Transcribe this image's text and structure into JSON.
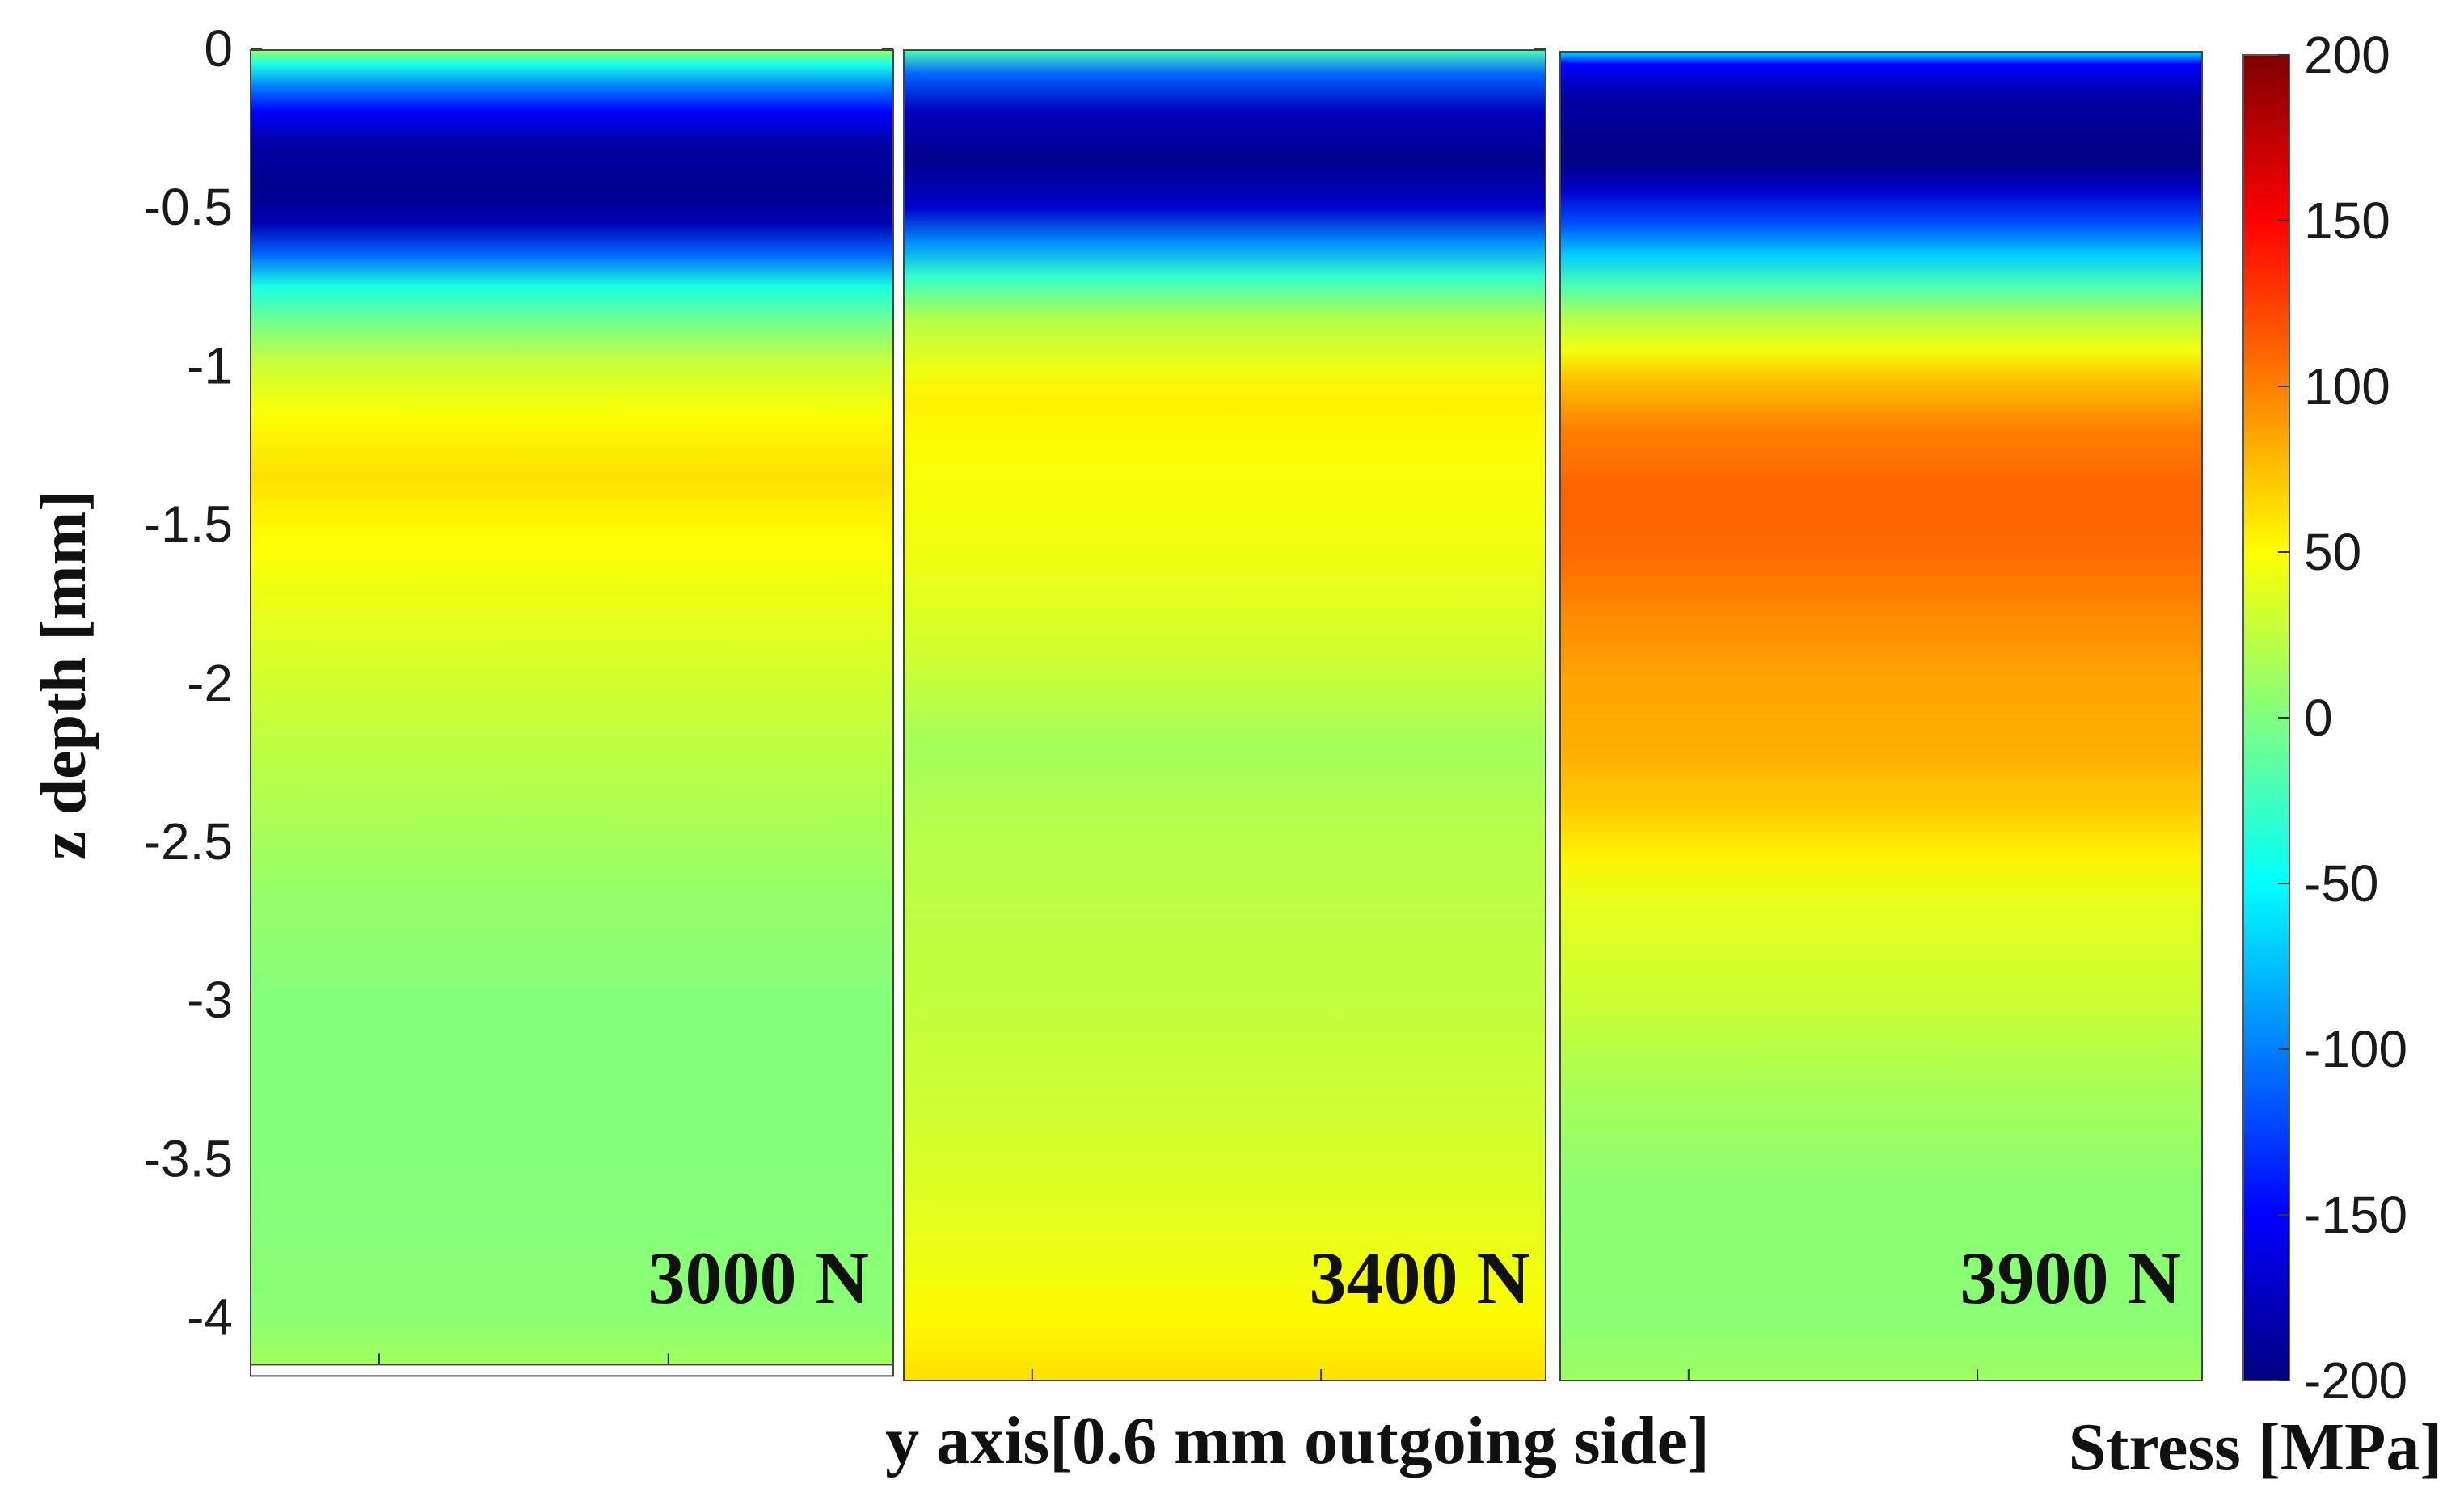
{
  "chart_data": {
    "type": "heatmap",
    "title": "",
    "xlabel": "y axis[0.6 mm outgoing side]",
    "ylabel": "z depth [mm]",
    "ylim": [
      -4.2,
      0
    ],
    "y_ticks": [
      "0",
      "-0.5",
      "-1",
      "-1.5",
      "-2",
      "-2.5",
      "-3",
      "-3.5",
      "-4"
    ],
    "y_tick_values": [
      0,
      -0.5,
      -1,
      -1.5,
      -2,
      -2.5,
      -3,
      -3.5,
      -4
    ],
    "colorbar": {
      "label": "Stress [MPa]",
      "range": [
        -200,
        200
      ],
      "ticks": [
        "200",
        "150",
        "100",
        "50",
        "0",
        "-50",
        "-100",
        "-150",
        "-200"
      ],
      "tick_values": [
        200,
        150,
        100,
        50,
        0,
        -50,
        -100,
        -150,
        -200
      ],
      "colormap": "jet"
    },
    "panels": [
      {
        "label": "3000 N",
        "depth_bottom": -4.15,
        "profile": [
          {
            "z": 0,
            "stress": 10
          },
          {
            "z": -0.05,
            "stress": -40
          },
          {
            "z": -0.12,
            "stress": -100
          },
          {
            "z": -0.2,
            "stress": -150
          },
          {
            "z": -0.3,
            "stress": -185
          },
          {
            "z": -0.45,
            "stress": -195
          },
          {
            "z": -0.55,
            "stress": -180
          },
          {
            "z": -0.65,
            "stress": -110
          },
          {
            "z": -0.75,
            "stress": -40
          },
          {
            "z": -0.88,
            "stress": 0
          },
          {
            "z": -1.0,
            "stress": 30
          },
          {
            "z": -1.15,
            "stress": 48
          },
          {
            "z": -1.35,
            "stress": 62
          },
          {
            "z": -1.55,
            "stress": 50
          },
          {
            "z": -1.8,
            "stress": 40
          },
          {
            "z": -2.1,
            "stress": 28
          },
          {
            "z": -2.4,
            "stress": 18
          },
          {
            "z": -2.7,
            "stress": 8
          },
          {
            "z": -3.0,
            "stress": 2
          },
          {
            "z": -3.5,
            "stress": 2
          },
          {
            "z": -4.0,
            "stress": 4
          },
          {
            "z": -4.15,
            "stress": 14
          }
        ]
      },
      {
        "label": "3400 N",
        "depth_bottom": -4.2,
        "profile": [
          {
            "z": 0,
            "stress": -20
          },
          {
            "z": -0.08,
            "stress": -110
          },
          {
            "z": -0.2,
            "stress": -175
          },
          {
            "z": -0.35,
            "stress": -195
          },
          {
            "z": -0.5,
            "stress": -170
          },
          {
            "z": -0.62,
            "stress": -90
          },
          {
            "z": -0.72,
            "stress": -30
          },
          {
            "z": -0.85,
            "stress": 20
          },
          {
            "z": -1.0,
            "stress": 42
          },
          {
            "z": -1.1,
            "stress": 55
          },
          {
            "z": -1.3,
            "stress": 48
          },
          {
            "z": -1.6,
            "stress": 44
          },
          {
            "z": -1.9,
            "stress": 32
          },
          {
            "z": -2.2,
            "stress": 14
          },
          {
            "z": -2.5,
            "stress": 22
          },
          {
            "z": -3.0,
            "stress": 26
          },
          {
            "z": -3.4,
            "stress": 32
          },
          {
            "z": -3.8,
            "stress": 42
          },
          {
            "z": -4.0,
            "stress": 52
          },
          {
            "z": -4.2,
            "stress": 62
          }
        ]
      },
      {
        "label": "3900 N",
        "depth_bottom": -4.2,
        "profile": [
          {
            "z": 0,
            "stress": -60
          },
          {
            "z": -0.05,
            "stress": -150
          },
          {
            "z": -0.15,
            "stress": -185
          },
          {
            "z": -0.35,
            "stress": -200
          },
          {
            "z": -0.45,
            "stress": -170
          },
          {
            "z": -0.55,
            "stress": -120
          },
          {
            "z": -0.65,
            "stress": -70
          },
          {
            "z": -0.75,
            "stress": -20
          },
          {
            "z": -0.85,
            "stress": 20
          },
          {
            "z": -0.95,
            "stress": 45
          },
          {
            "z": -1.05,
            "stress": 75
          },
          {
            "z": -1.2,
            "stress": 100
          },
          {
            "z": -1.4,
            "stress": 112
          },
          {
            "z": -1.6,
            "stress": 108
          },
          {
            "z": -1.8,
            "stress": 95
          },
          {
            "z": -2.0,
            "stress": 85
          },
          {
            "z": -2.2,
            "stress": 82
          },
          {
            "z": -2.4,
            "stress": 70
          },
          {
            "z": -2.55,
            "stress": 55
          },
          {
            "z": -2.7,
            "stress": 40
          },
          {
            "z": -3.0,
            "stress": 30
          },
          {
            "z": -3.3,
            "stress": 15
          },
          {
            "z": -3.6,
            "stress": 5
          },
          {
            "z": -4.0,
            "stress": 4
          },
          {
            "z": -4.2,
            "stress": 12
          }
        ]
      }
    ]
  }
}
